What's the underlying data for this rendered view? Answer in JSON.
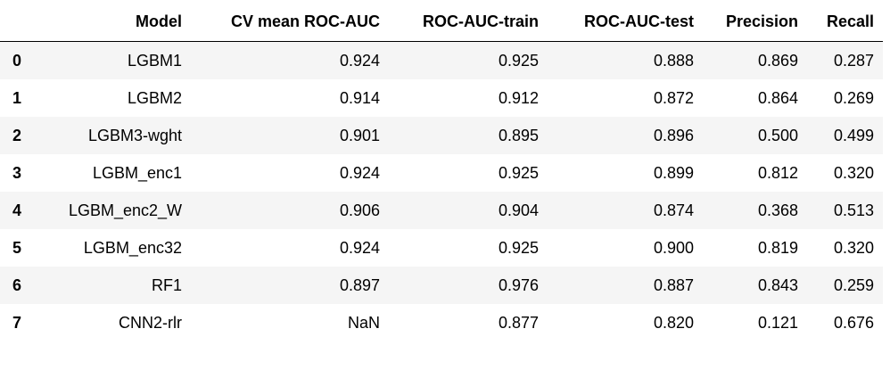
{
  "table": {
    "index_header": "",
    "columns": [
      "Model",
      "CV mean ROC-AUC",
      "ROC-AUC-train",
      "ROC-AUC-test",
      "Precision",
      "Recall"
    ],
    "rows": [
      {
        "index": "0",
        "cells": [
          "LGBM1",
          "0.924",
          "0.925",
          "0.888",
          "0.869",
          "0.287"
        ]
      },
      {
        "index": "1",
        "cells": [
          "LGBM2",
          "0.914",
          "0.912",
          "0.872",
          "0.864",
          "0.269"
        ]
      },
      {
        "index": "2",
        "cells": [
          "LGBM3-wght",
          "0.901",
          "0.895",
          "0.896",
          "0.500",
          "0.499"
        ]
      },
      {
        "index": "3",
        "cells": [
          "LGBM_enc1",
          "0.924",
          "0.925",
          "0.899",
          "0.812",
          "0.320"
        ]
      },
      {
        "index": "4",
        "cells": [
          "LGBM_enc2_W",
          "0.906",
          "0.904",
          "0.874",
          "0.368",
          "0.513"
        ]
      },
      {
        "index": "5",
        "cells": [
          "LGBM_enc32",
          "0.924",
          "0.925",
          "0.900",
          "0.819",
          "0.320"
        ]
      },
      {
        "index": "6",
        "cells": [
          "RF1",
          "0.897",
          "0.976",
          "0.887",
          "0.843",
          "0.259"
        ]
      },
      {
        "index": "7",
        "cells": [
          "CNN2-rlr",
          "NaN",
          "0.877",
          "0.820",
          "0.121",
          "0.676"
        ]
      }
    ]
  }
}
